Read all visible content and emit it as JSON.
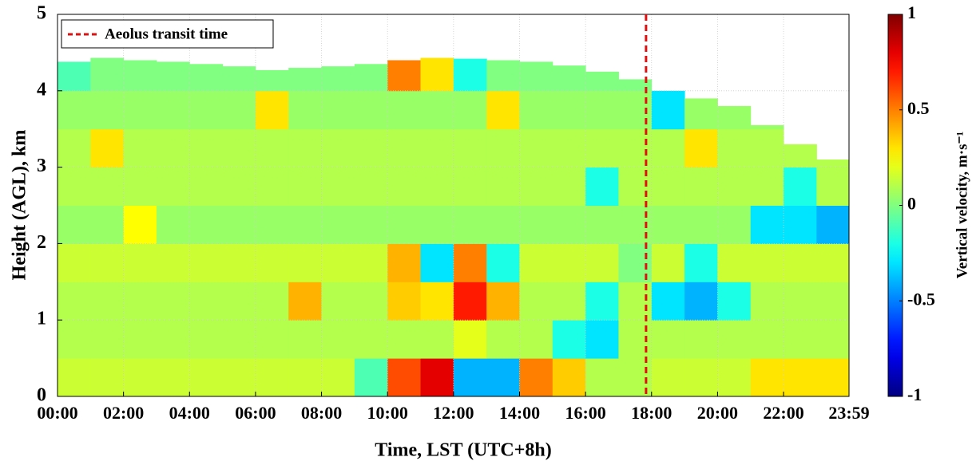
{
  "chart_data": {
    "type": "heatmap",
    "xlabel": "Time, LST (UTC+8h)",
    "ylabel": "Height (AGL), km",
    "colorbar_label": "Vertical velocity, m·s⁻¹",
    "colormap": "jet",
    "xlim": [
      0,
      1439
    ],
    "xticks": [
      {
        "value": 0,
        "label": "00:00"
      },
      {
        "value": 120,
        "label": "02:00"
      },
      {
        "value": 240,
        "label": "04:00"
      },
      {
        "value": 360,
        "label": "06:00"
      },
      {
        "value": 480,
        "label": "08:00"
      },
      {
        "value": 600,
        "label": "10:00"
      },
      {
        "value": 720,
        "label": "12:00"
      },
      {
        "value": 840,
        "label": "14:00"
      },
      {
        "value": 960,
        "label": "16:00"
      },
      {
        "value": 1080,
        "label": "18:00"
      },
      {
        "value": 1200,
        "label": "20:00"
      },
      {
        "value": 1320,
        "label": "22:00"
      },
      {
        "value": 1439,
        "label": "23:59"
      }
    ],
    "ylim": [
      0,
      5
    ],
    "yticks": [
      0,
      1,
      2,
      3,
      4,
      5
    ],
    "clim": [
      -1,
      1
    ],
    "cticks": [
      -1,
      -0.5,
      0,
      0.5,
      1
    ],
    "grid": true,
    "x_bins": [
      0,
      60,
      120,
      180,
      240,
      300,
      360,
      420,
      480,
      540,
      600,
      660,
      720,
      780,
      840,
      900,
      960,
      1020,
      1080,
      1140,
      1200,
      1260,
      1320,
      1380,
      1440
    ],
    "y_bins": [
      0,
      0.5,
      1,
      1.5,
      2,
      2.5,
      3,
      3.5,
      4,
      4.5
    ],
    "top": [
      4.38,
      4.43,
      4.4,
      4.38,
      4.35,
      4.32,
      4.27,
      4.3,
      4.32,
      4.35,
      4.4,
      4.43,
      4.42,
      4.4,
      4.38,
      4.33,
      4.25,
      4.15,
      4.0,
      3.9,
      3.8,
      3.55,
      3.3,
      3.1
    ],
    "z": [
      [
        0.15,
        0.15,
        0.15,
        0.15,
        0.15,
        0.15,
        0.15,
        0.15,
        0.15,
        -0.1,
        0.6,
        0.8,
        -0.4,
        -0.4,
        0.5,
        0.35,
        0.1,
        0.1,
        0.15,
        0.15,
        0.15,
        0.3,
        0.3,
        0.3
      ],
      [
        0.1,
        0.1,
        0.1,
        0.1,
        0.1,
        0.1,
        0.1,
        0.1,
        0.1,
        0.1,
        0.1,
        0.1,
        0.2,
        0.1,
        0.1,
        -0.2,
        -0.3,
        0.1,
        0.1,
        0.1,
        0.1,
        0.1,
        0.1,
        0.1
      ],
      [
        0.1,
        0.1,
        0.1,
        0.1,
        0.1,
        0.1,
        0.1,
        0.4,
        0.1,
        0.1,
        0.35,
        0.3,
        0.7,
        0.4,
        0.1,
        0.1,
        -0.2,
        0.1,
        -0.3,
        -0.4,
        -0.2,
        0.1,
        0.1,
        0.1
      ],
      [
        0.15,
        0.15,
        0.15,
        0.15,
        0.15,
        0.15,
        0.15,
        0.15,
        0.15,
        0.15,
        0.4,
        -0.3,
        0.5,
        -0.2,
        0.15,
        0.15,
        0.15,
        0.0,
        0.15,
        -0.2,
        0.15,
        0.15,
        0.15,
        0.15
      ],
      [
        0.05,
        0.05,
        0.25,
        0.05,
        0.05,
        0.05,
        0.05,
        0.05,
        0.05,
        0.05,
        0.05,
        0.05,
        0.05,
        0.05,
        0.05,
        0.05,
        0.05,
        0.05,
        0.05,
        0.05,
        0.05,
        -0.3,
        -0.3,
        -0.4
      ],
      [
        0.1,
        0.1,
        0.1,
        0.1,
        0.1,
        0.1,
        0.1,
        0.1,
        0.1,
        0.1,
        0.1,
        0.1,
        0.1,
        0.1,
        0.1,
        0.1,
        -0.2,
        0.1,
        0.1,
        0.1,
        0.1,
        0.1,
        -0.2,
        0.1
      ],
      [
        0.1,
        0.3,
        0.1,
        0.1,
        0.1,
        0.1,
        0.1,
        0.1,
        0.1,
        0.1,
        0.1,
        0.1,
        0.1,
        0.1,
        0.1,
        0.1,
        0.1,
        0.1,
        0.1,
        0.3,
        0.1,
        0.1,
        0.1,
        0.1
      ],
      [
        0.05,
        0.05,
        0.05,
        0.05,
        0.05,
        0.05,
        0.3,
        0.05,
        0.05,
        0.05,
        0.05,
        0.05,
        0.05,
        0.3,
        0.05,
        0.05,
        0.05,
        0.05,
        -0.3,
        0.05,
        0.05,
        0.05,
        null,
        null
      ],
      [
        -0.1,
        0.0,
        0.0,
        0.0,
        0.0,
        0.0,
        0.0,
        0.0,
        0.0,
        0.0,
        0.5,
        0.3,
        -0.2,
        0.0,
        0.0,
        0.0,
        0.0,
        0.0,
        null,
        null,
        null,
        null,
        null,
        null
      ]
    ],
    "transit": {
      "name": "Aeolus transit time",
      "x": 1070,
      "color": "#e01010"
    }
  }
}
